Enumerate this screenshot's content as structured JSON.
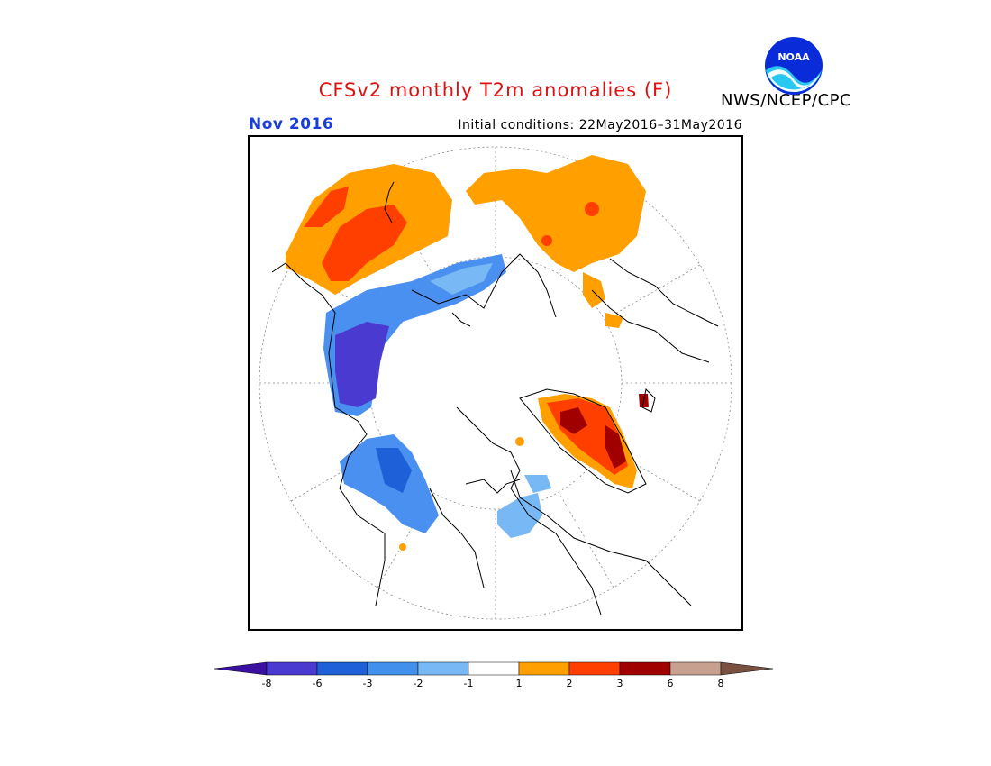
{
  "header": {
    "title": "CFSv2 monthly T2m anomalies (F)",
    "month": "Nov 2016",
    "initial_conditions": "Initial conditions: 22May2016–31May2016",
    "agency": "NWS/NCEP/CPC",
    "logo_text": "NOAA"
  },
  "map": {
    "projection": "north-polar-stereographic",
    "field": "T2m anomaly",
    "units": "F",
    "anomaly_regions": [
      {
        "region": "North Pacific / Siberia (top-left)",
        "category": "1 to 3",
        "color": "#ff9f00"
      },
      {
        "region": "Central Siberia core",
        "category": "2 to 3",
        "color": "#ff3f00"
      },
      {
        "region": "Alaska / Yukon (top-right)",
        "category": "1 to 2",
        "color": "#ff9f00"
      },
      {
        "region": "Kazakhstan / Western Siberia",
        "category": "-1 to -3",
        "color": "#4a90f0"
      },
      {
        "region": "Central Russia core",
        "category": "-6 to -8",
        "color": "#4a3ad0"
      },
      {
        "region": "Europe / Scandinavia",
        "category": "-1 to -3",
        "color": "#4a90f0"
      },
      {
        "region": "Greenland / Canadian Arctic",
        "category": "3 to 8",
        "color": "#a00000"
      }
    ]
  },
  "colorbar": {
    "ticks": [
      "-8",
      "-6",
      "-3",
      "-2",
      "-1",
      "1",
      "2",
      "3",
      "6",
      "8"
    ],
    "colors": [
      "#3a10a0",
      "#4a3ad0",
      "#1e60d8",
      "#4090ec",
      "#78b8f4",
      "#ffffff",
      "#ff9f00",
      "#ff3f00",
      "#a00000",
      "#c8a090",
      "#7a5040"
    ]
  }
}
